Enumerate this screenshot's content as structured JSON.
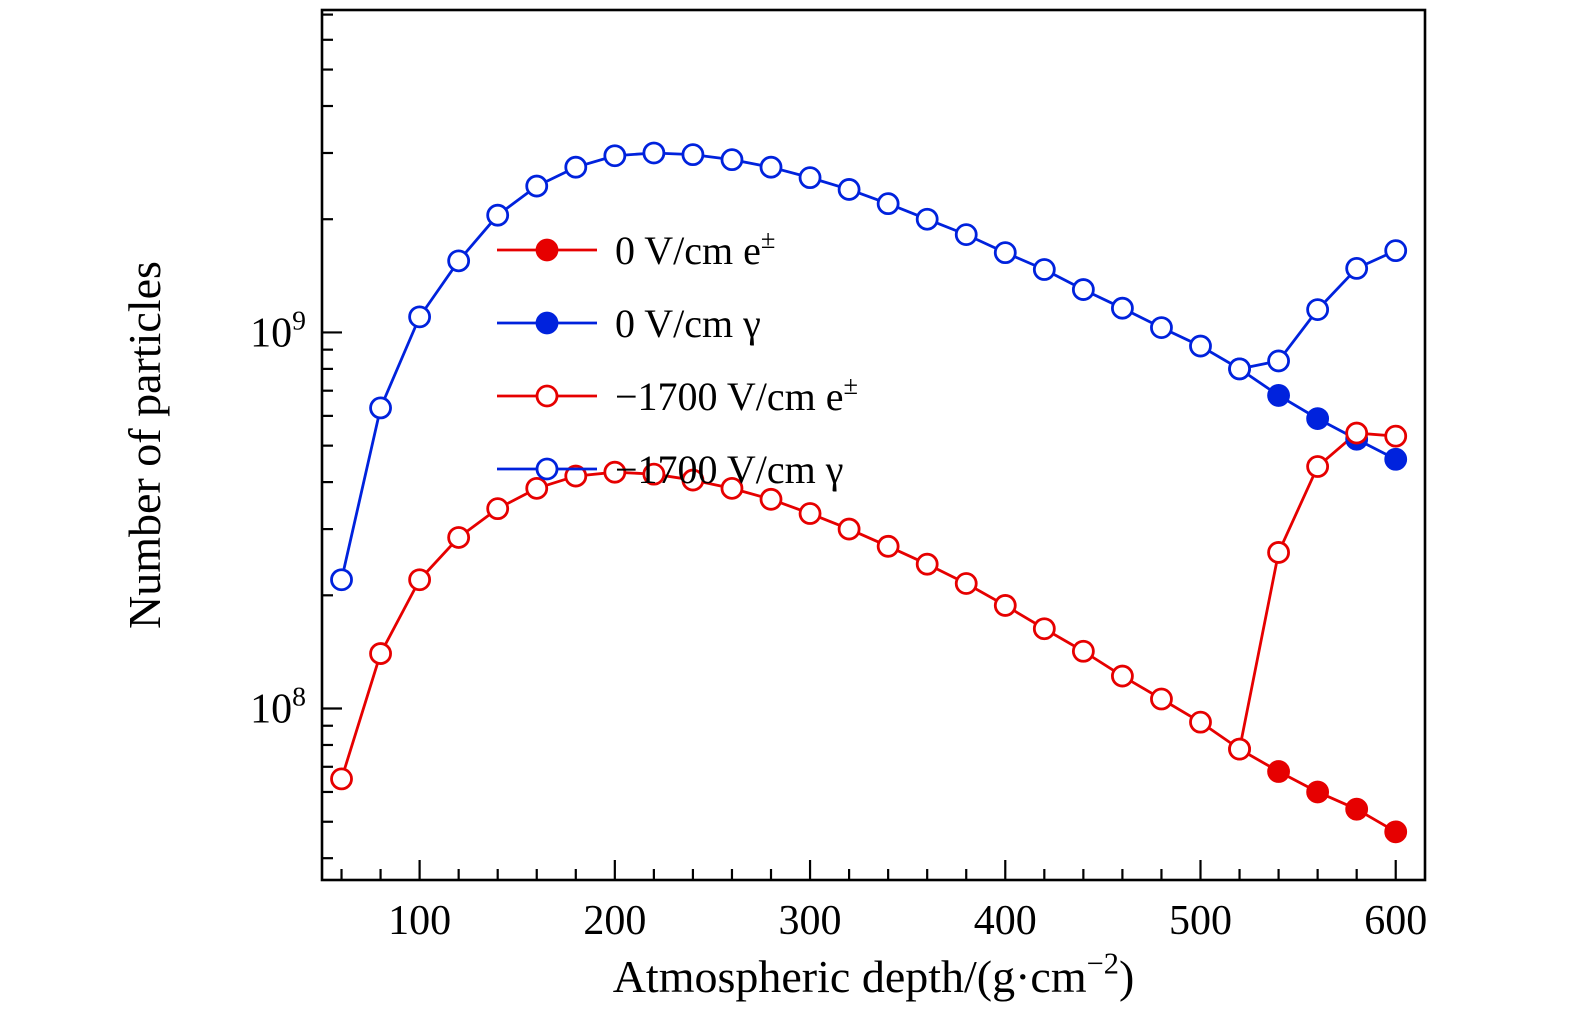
{
  "page": {
    "background": "#ffffff",
    "frame_color": "#000000",
    "text_color": "#000000"
  },
  "chart_data": {
    "type": "line",
    "title": "",
    "xlabel_parts": [
      {
        "t": "Atmospheric depth/(g·cm"
      },
      {
        "t": "−2",
        "sup": true
      },
      {
        "t": ")"
      }
    ],
    "ylabel": "Number of particles",
    "axes": {
      "x": {
        "min": 50,
        "max": 615,
        "major_ticks": [
          100,
          200,
          300,
          400,
          500,
          600
        ],
        "major_tick_labels": [
          "100",
          "200",
          "300",
          "400",
          "500",
          "600"
        ],
        "minor_start": 60,
        "minor_end": 600,
        "minor_step": 20,
        "grid": false
      },
      "y": {
        "scale": "log",
        "min": 35000000.0,
        "max": 7200000000.0,
        "major_ticks": [
          100000000.0,
          1000000000.0
        ],
        "major_tick_labels": [
          {
            "base": "10",
            "exp": "8"
          },
          {
            "base": "10",
            "exp": "9"
          }
        ],
        "minor_decades": [
          7,
          8,
          9
        ],
        "grid": false
      }
    },
    "colors": {
      "red": "#e60000",
      "blue": "#0022dd"
    },
    "legend_position": "upper-left-inside",
    "series": [
      {
        "id": "zero-field-epm",
        "label_parts": [
          {
            "t": "0 V/cm e"
          },
          {
            "t": "±",
            "sup": true
          }
        ],
        "color_key": "red",
        "marker": "filled",
        "x": [
          520,
          540,
          560,
          580,
          600
        ],
        "y": [
          78000000.0,
          68000000.0,
          60000000.0,
          54000000.0,
          47000000.0
        ]
      },
      {
        "id": "zero-field-gamma",
        "label_parts": [
          {
            "t": "0 V/cm γ"
          }
        ],
        "color_key": "blue",
        "marker": "filled",
        "x": [
          520,
          540,
          560,
          580,
          600
        ],
        "y": [
          800000000.0,
          680000000.0,
          590000000.0,
          520000000.0,
          460000000.0
        ]
      },
      {
        "id": "field-1700-epm",
        "label_parts": [
          {
            "t": "−1700 V/cm e"
          },
          {
            "t": "±",
            "sup": true
          }
        ],
        "color_key": "red",
        "marker": "open",
        "x": [
          60,
          80,
          100,
          120,
          140,
          160,
          180,
          200,
          220,
          240,
          260,
          280,
          300,
          320,
          340,
          360,
          380,
          400,
          420,
          440,
          460,
          480,
          500,
          520,
          540,
          560,
          580,
          600
        ],
        "y": [
          65000000.0,
          140000000.0,
          220000000.0,
          285000000.0,
          340000000.0,
          385000000.0,
          415000000.0,
          425000000.0,
          420000000.0,
          405000000.0,
          385000000.0,
          360000000.0,
          330000000.0,
          300000000.0,
          270000000.0,
          242000000.0,
          215000000.0,
          188000000.0,
          163000000.0,
          142000000.0,
          122000000.0,
          106000000.0,
          92000000.0,
          78000000.0,
          260000000.0,
          440000000.0,
          540000000.0,
          530000000.0
        ]
      },
      {
        "id": "field-1700-gamma",
        "label_parts": [
          {
            "t": "−1700 V/cm γ"
          }
        ],
        "color_key": "blue",
        "marker": "open",
        "x": [
          60,
          80,
          100,
          120,
          140,
          160,
          180,
          200,
          220,
          240,
          260,
          280,
          300,
          320,
          340,
          360,
          380,
          400,
          420,
          440,
          460,
          480,
          500,
          520,
          540,
          560,
          580,
          600
        ],
        "y": [
          220000000.0,
          630000000.0,
          1100000000.0,
          1550000000.0,
          2050000000.0,
          2450000000.0,
          2750000000.0,
          2950000000.0,
          3000000000.0,
          2970000000.0,
          2880000000.0,
          2750000000.0,
          2580000000.0,
          2400000000.0,
          2200000000.0,
          2000000000.0,
          1820000000.0,
          1630000000.0,
          1470000000.0,
          1300000000.0,
          1160000000.0,
          1030000000.0,
          920000000.0,
          800000000.0,
          840000000.0,
          1150000000.0,
          1480000000.0,
          1650000000.0
        ]
      }
    ]
  }
}
